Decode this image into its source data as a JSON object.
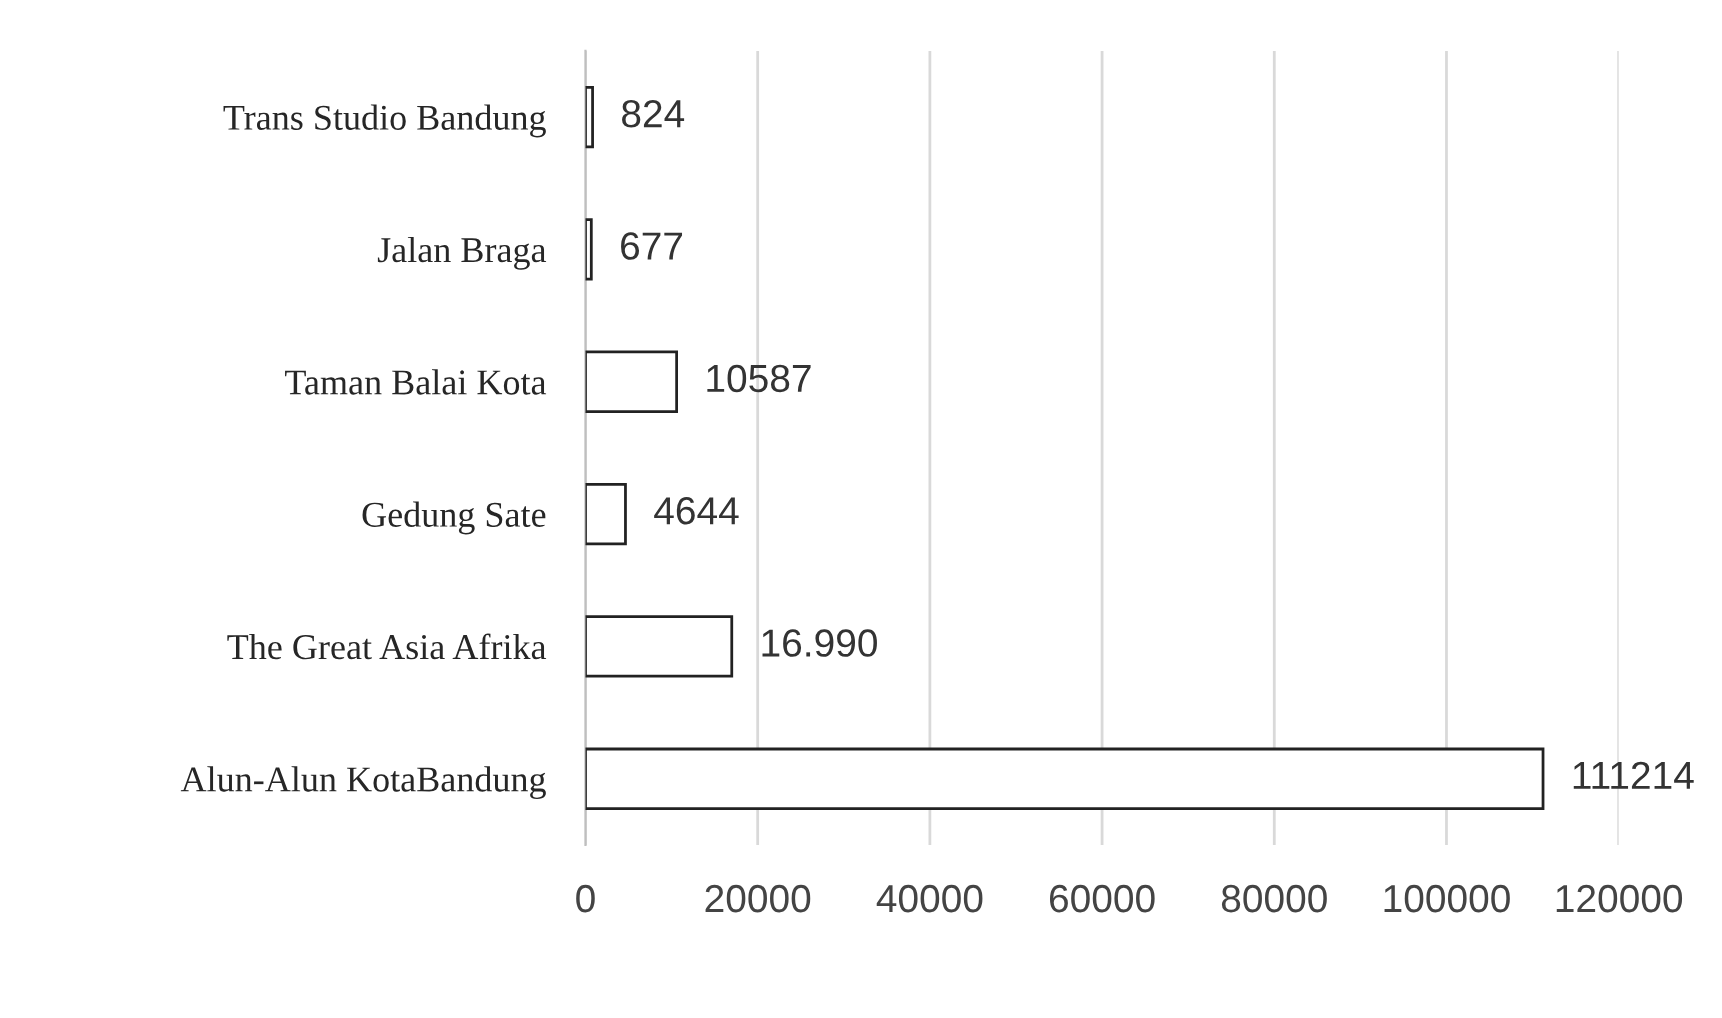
{
  "chart_data": {
    "type": "bar",
    "orientation": "horizontal",
    "categories": [
      "Trans Studio Bandung",
      "Jalan Braga",
      "Taman Balai Kota",
      "Gedung Sate",
      "The Great Asia Afrika",
      "Alun-Alun KotaBandung"
    ],
    "values": [
      824,
      677,
      10587,
      4644,
      16990,
      111214
    ],
    "value_labels": [
      "824",
      "677",
      "10587",
      "4644",
      "16.990",
      "111214"
    ],
    "color": "#ffffff",
    "xlim": [
      0,
      120000
    ],
    "xticks": [
      0,
      20000,
      40000,
      60000,
      80000,
      100000,
      120000
    ],
    "grid": "x"
  }
}
